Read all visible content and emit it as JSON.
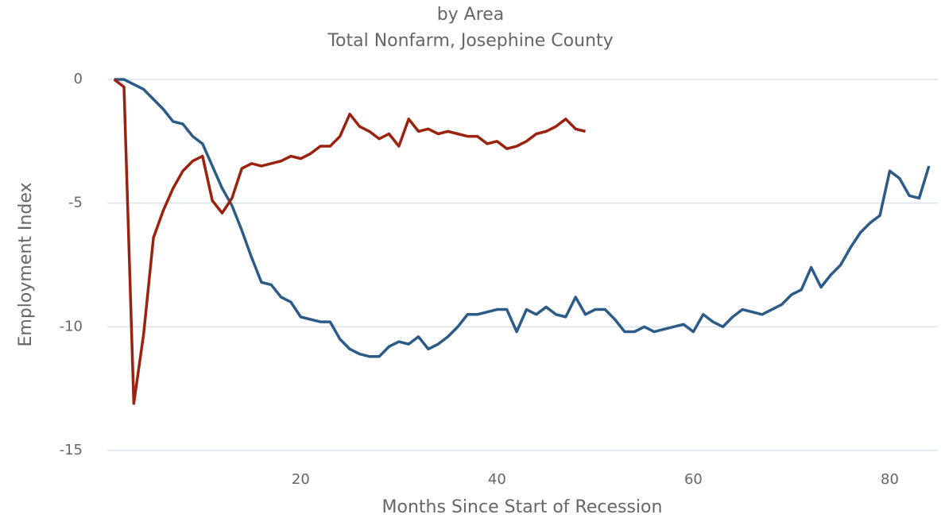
{
  "chart_data": {
    "type": "line",
    "title": "by Area",
    "subtitle": "Total Nonfarm, Josephine County",
    "x_label": "Months Since Start of Recession",
    "y_label": "Employment Index",
    "x": [
      1,
      2,
      3,
      4,
      5,
      6,
      7,
      8,
      9,
      10,
      11,
      12,
      13,
      14,
      15,
      16,
      17,
      18,
      19,
      20,
      21,
      22,
      23,
      24,
      25,
      26,
      27,
      28,
      29,
      30,
      31,
      32,
      33,
      34,
      35,
      36,
      37,
      38,
      39,
      40,
      41,
      42,
      43,
      44,
      45,
      46,
      47,
      48,
      49,
      50,
      51,
      52,
      53,
      54,
      55,
      56,
      57,
      58,
      59,
      60,
      61,
      62,
      63,
      64,
      65,
      66,
      67,
      68,
      69,
      70,
      71,
      72,
      73,
      74,
      75,
      76,
      77,
      78,
      79,
      80,
      81,
      82,
      83,
      84
    ],
    "series": [
      {
        "color": "#2d5b88",
        "values": [
          0,
          0,
          -0.2,
          -0.4,
          -0.8,
          -1.2,
          -1.7,
          -1.8,
          -2.3,
          -2.6,
          -3.5,
          -4.4,
          -5.1,
          -6.1,
          -7.2,
          -8.2,
          -8.3,
          -8.8,
          -9.0,
          -9.6,
          -9.7,
          -9.8,
          -9.8,
          -10.5,
          -10.9,
          -11.1,
          -11.2,
          -11.2,
          -10.8,
          -10.6,
          -10.7,
          -10.4,
          -10.9,
          -10.7,
          -10.4,
          -10.0,
          -9.5,
          -9.5,
          -9.4,
          -9.3,
          -9.3,
          -10.2,
          -9.3,
          -9.5,
          -9.2,
          -9.5,
          -9.6,
          -8.8,
          -9.5,
          -9.3,
          -9.3,
          -9.7,
          -10.2,
          -10.2,
          -10.0,
          -10.2,
          -10.1,
          -10.0,
          -9.9,
          -10.2,
          -9.5,
          -9.8,
          -10.0,
          -9.6,
          -9.3,
          -9.4,
          -9.5,
          -9.3,
          -9.1,
          -8.7,
          -8.5,
          -7.6,
          -8.4,
          -7.9,
          -7.5,
          -6.8,
          -6.2,
          -5.8,
          -5.5,
          -3.7,
          -4.0,
          -4.7,
          -4.8,
          -3.5
        ]
      },
      {
        "color": "#99230f",
        "values": [
          0,
          -0.3,
          -13.1,
          -10.3,
          -6.4,
          -5.3,
          -4.4,
          -3.7,
          -3.3,
          -3.1,
          -4.9,
          -5.4,
          -4.8,
          -3.6,
          -3.4,
          -3.5,
          -3.4,
          -3.3,
          -3.1,
          -3.2,
          -3.0,
          -2.7,
          -2.7,
          -2.3,
          -1.4,
          -1.9,
          -2.1,
          -2.4,
          -2.2,
          -2.7,
          -1.6,
          -2.1,
          -2.0,
          -2.2,
          -2.1,
          -2.2,
          -2.3,
          -2.3,
          -2.6,
          -2.5,
          -2.8,
          -2.7,
          -2.5,
          -2.2,
          -2.1,
          -1.9,
          -1.6,
          -2.0,
          -2.1,
          null,
          null,
          null,
          null,
          null,
          null,
          null,
          null,
          null,
          null,
          null,
          null,
          null,
          null,
          null,
          null,
          null,
          null,
          null,
          null,
          null,
          null,
          null,
          null,
          null,
          null,
          null,
          null,
          null,
          null,
          null,
          null,
          null,
          null,
          null
        ]
      }
    ],
    "xlim": [
      0.3,
      84.9
    ],
    "xticks": [
      20,
      40,
      60,
      80
    ],
    "ylim": [
      -15,
      0
    ],
    "yticks": [
      0,
      -5,
      -10,
      -15
    ],
    "grid": true
  }
}
